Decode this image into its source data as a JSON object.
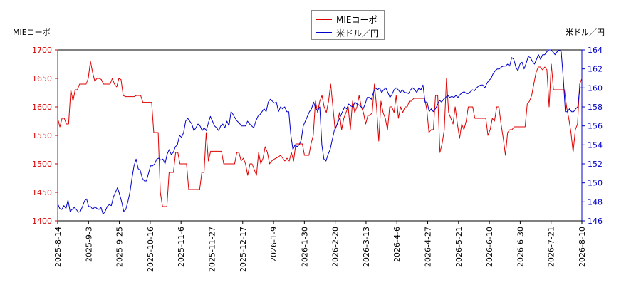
{
  "chart_data": {
    "type": "line",
    "left_axis_label": "MIEコーポ",
    "right_axis_label": "米ドル／円",
    "x_ticks": [
      "2025-8-14",
      "2025-9-3",
      "2025-9-25",
      "2025-10-16",
      "2025-11-6",
      "2025-11-27",
      "2025-12-17",
      "2026-1-9",
      "2026-1-30",
      "2026-2-20",
      "2026-3-13",
      "2026-4-6",
      "2026-4-27",
      "2026-5-21",
      "2026-6-10",
      "2026-6-30",
      "2026-7-21",
      "2026-8-10"
    ],
    "y_left_ticks": [
      1400,
      1450,
      1500,
      1550,
      1600,
      1650,
      1700
    ],
    "y_right_ticks": [
      146,
      148,
      150,
      152,
      154,
      156,
      158,
      160,
      162,
      164
    ],
    "ylim_left": [
      1400,
      1700
    ],
    "ylim_right": [
      146,
      164
    ],
    "grid": false,
    "legend_position": "top-center",
    "series": [
      {
        "name": "MIEコーポ",
        "axis": "left",
        "color": "#dd0000",
        "values": [
          1580,
          1565,
          1580,
          1580,
          1570,
          1570,
          1630,
          1610,
          1630,
          1630,
          1640,
          1640,
          1640,
          1640,
          1650,
          1680,
          1660,
          1645,
          1650,
          1650,
          1648,
          1640,
          1640,
          1640,
          1640,
          1650,
          1640,
          1635,
          1650,
          1648,
          1620,
          1618,
          1618,
          1618,
          1618,
          1618,
          1620,
          1620,
          1620,
          1608,
          1608,
          1608,
          1608,
          1608,
          1555,
          1555,
          1555,
          1450,
          1425,
          1425,
          1425,
          1485,
          1485,
          1485,
          1520,
          1520,
          1500,
          1500,
          1500,
          1500,
          1455,
          1455,
          1455,
          1455,
          1455,
          1455,
          1485,
          1485,
          1555,
          1505,
          1522,
          1522,
          1522,
          1522,
          1522,
          1522,
          1500,
          1500,
          1500,
          1500,
          1500,
          1500,
          1520,
          1520,
          1505,
          1510,
          1500,
          1480,
          1500,
          1500,
          1490,
          1480,
          1520,
          1500,
          1510,
          1530,
          1520,
          1500,
          1505,
          1508,
          1510,
          1512,
          1515,
          1510,
          1505,
          1510,
          1505,
          1520,
          1505,
          1535,
          1535,
          1535,
          1535,
          1515,
          1515,
          1515,
          1535,
          1550,
          1610,
          1590,
          1610,
          1620,
          1600,
          1590,
          1610,
          1640,
          1600,
          1560,
          1570,
          1590,
          1560,
          1580,
          1590,
          1600,
          1560,
          1610,
          1590,
          1600,
          1620,
          1600,
          1590,
          1570,
          1585,
          1585,
          1590,
          1640,
          1600,
          1540,
          1610,
          1590,
          1580,
          1560,
          1600,
          1600,
          1590,
          1620,
          1580,
          1600,
          1590,
          1600,
          1600,
          1610,
          1610,
          1615,
          1615,
          1615,
          1615,
          1615,
          1615,
          1595,
          1555,
          1560,
          1560,
          1620,
          1620,
          1520,
          1535,
          1560,
          1650,
          1590,
          1580,
          1570,
          1600,
          1570,
          1545,
          1570,
          1560,
          1575,
          1600,
          1600,
          1600,
          1580,
          1580,
          1580,
          1580,
          1580,
          1580,
          1550,
          1560,
          1580,
          1575,
          1600,
          1600,
          1570,
          1545,
          1515,
          1555,
          1560,
          1560,
          1565,
          1565,
          1565,
          1565,
          1565,
          1565,
          1605,
          1610,
          1620,
          1640,
          1660,
          1670,
          1670,
          1665,
          1670,
          1665,
          1600,
          1675,
          1630,
          1630,
          1630,
          1630,
          1630,
          1630,
          1600,
          1580,
          1555,
          1520,
          1560,
          1570,
          1640,
          1650
        ]
      },
      {
        "name": "米ドル／円",
        "axis": "right",
        "color": "#0000cc",
        "values": [
          147.8,
          147.3,
          147.2,
          147.6,
          147.3,
          148.2,
          147.0,
          147.2,
          147.4,
          147.2,
          146.9,
          147.0,
          147.5,
          148.1,
          148.3,
          147.5,
          147.5,
          147.2,
          147.5,
          147.3,
          147.2,
          147.4,
          146.7,
          147.0,
          147.5,
          147.7,
          147.6,
          148.5,
          149.0,
          149.5,
          148.8,
          148.0,
          147.0,
          147.2,
          148.0,
          149.0,
          150.5,
          151.8,
          152.5,
          151.5,
          151.3,
          150.5,
          150.2,
          150.2,
          151.0,
          151.8,
          151.8,
          152.0,
          152.5,
          152.6,
          152.4,
          152.5,
          152.0,
          153.0,
          153.5,
          153.0,
          153.2,
          153.8,
          154.0,
          155.0,
          154.8,
          155.3,
          156.5,
          156.8,
          156.5,
          156.2,
          155.5,
          155.8,
          156.2,
          156.0,
          155.5,
          155.8,
          155.5,
          156.3,
          157.0,
          156.5,
          156.0,
          155.8,
          155.5,
          156.0,
          156.2,
          155.8,
          156.5,
          156.0,
          157.5,
          157.2,
          156.8,
          156.5,
          156.3,
          156.0,
          156.0,
          156.0,
          156.5,
          156.2,
          156.0,
          155.8,
          156.5,
          157.0,
          157.2,
          157.5,
          157.8,
          157.5,
          158.5,
          158.8,
          158.6,
          158.4,
          158.5,
          157.5,
          158.0,
          157.8,
          158.0,
          157.5,
          157.5,
          155.0,
          153.5,
          154.0,
          153.8,
          154.0,
          154.5,
          156.0,
          156.5,
          157.0,
          157.5,
          157.8,
          158.5,
          157.8,
          157.6,
          158.0,
          154.0,
          152.5,
          152.3,
          153.0,
          153.5,
          154.5,
          155.5,
          156.0,
          156.5,
          157.0,
          157.5,
          158.0,
          157.8,
          158.3,
          158.1,
          158.0,
          158.5,
          158.3,
          158.2,
          158.0,
          157.8,
          158.3,
          159.0,
          159.0,
          158.8,
          159.5,
          160.0,
          159.8,
          160.0,
          159.5,
          159.8,
          160.0,
          159.5,
          159.0,
          159.3,
          159.8,
          160.0,
          159.8,
          159.5,
          159.8,
          159.5,
          159.5,
          159.4,
          159.8,
          160.0,
          159.8,
          159.5,
          160.0,
          159.8,
          160.3,
          158.5,
          158.5,
          157.5,
          157.8,
          157.5,
          157.8,
          158.2,
          158.7,
          158.5,
          158.8,
          159.0,
          159.2,
          159.0,
          159.1,
          159.0,
          159.2,
          159.0,
          159.3,
          159.5,
          159.6,
          159.4,
          159.4,
          159.6,
          159.8,
          159.7,
          160.0,
          160.2,
          160.3,
          160.3,
          160.0,
          160.5,
          160.8,
          161.0,
          161.5,
          161.8,
          162.0,
          162.0,
          162.2,
          162.3,
          162.3,
          162.5,
          162.3,
          163.2,
          163.0,
          162.2,
          161.8,
          162.5,
          162.7,
          162.0,
          162.6,
          163.3,
          163.2,
          162.8,
          162.5,
          163.0,
          163.5,
          163.0,
          163.5,
          163.5,
          163.8,
          164.0,
          164.0,
          163.8,
          163.5,
          163.8,
          164.0,
          163.8,
          161.0,
          157.5,
          157.5,
          157.8,
          157.5,
          157.5,
          157.8,
          158.0,
          160.0,
          160.0
        ]
      }
    ]
  }
}
